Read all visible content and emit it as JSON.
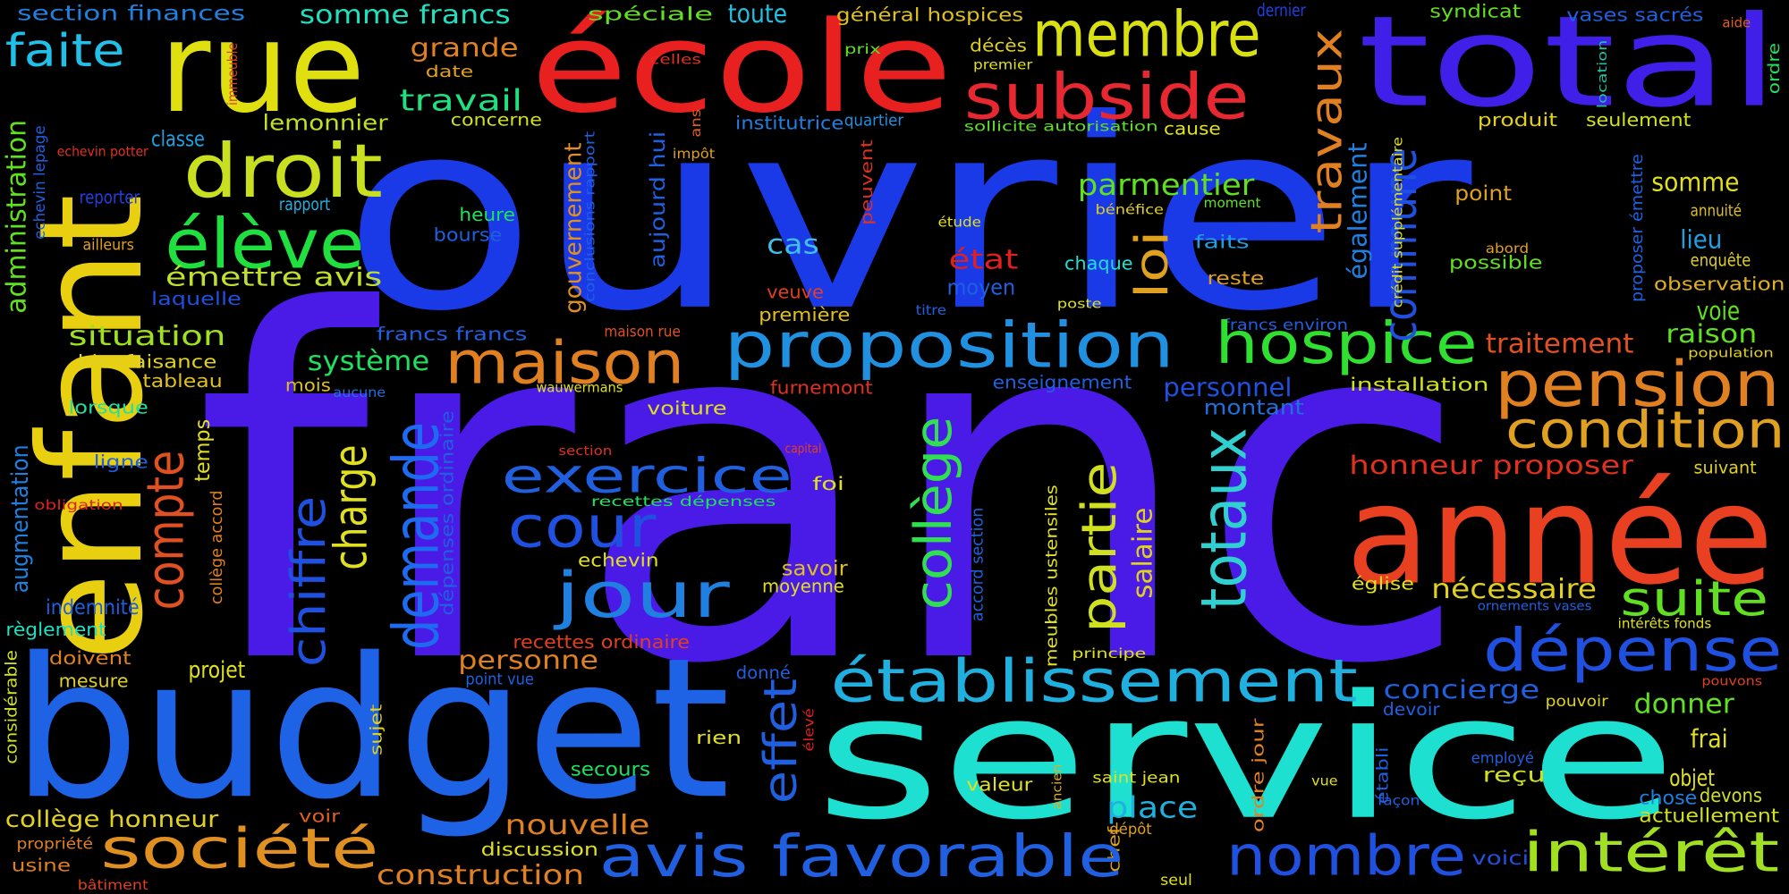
{
  "words": [
    "franc",
    "ouvrier",
    "budget",
    "service",
    "année",
    "enfant",
    "rue",
    "école",
    "total",
    "membre",
    "subside",
    "droit",
    "élève",
    "émettre avis",
    "faite",
    "section finances",
    "somme francs",
    "grande",
    "date",
    "travail",
    "lemonnier",
    "classe",
    "immeuble",
    "echevin potter",
    "administration",
    "echevin lepage",
    "reporter",
    "rapport",
    "ailleurs",
    "laquelle",
    "situation",
    "bienfaisance",
    "tableau",
    "lorsque",
    "ligne",
    "obligation",
    "augmentation",
    "compte",
    "temps",
    "collège accord",
    "indemnité",
    "règlement",
    "considérable",
    "doivent",
    "mesure",
    "projet",
    "chiffre",
    "charge",
    "demande",
    "système",
    "mois",
    "aucune",
    "francs francs",
    "maison",
    "heure",
    "bourse",
    "concerne",
    "gouvernement",
    "conclusions rapport",
    "aujourd hui",
    "celles",
    "ans",
    "impôt",
    "spéciale",
    "toute",
    "prix",
    "général hospices",
    "premier",
    "décès",
    "institutrice",
    "quartier",
    "sollicite autorisation",
    "cause",
    "dernier",
    "syndicat",
    "vases sacrés",
    "aide",
    "ordre",
    "location",
    "produit",
    "seulement",
    "travaux",
    "peuvent",
    "bénéfice",
    "moment",
    "étude",
    "parmentier",
    "cas",
    "état",
    "chaque",
    "moyen",
    "loi",
    "faits",
    "reste",
    "veuve",
    "première",
    "titre",
    "poste",
    "francs environ",
    "proposition",
    "hospice",
    "également",
    "commune",
    "crédit supplémentaire",
    "point",
    "proposer émettre",
    "somme",
    "annuité",
    "lieu",
    "enquête",
    "abord",
    "possible",
    "observation",
    "voie",
    "raison",
    "population",
    "traitement",
    "pension",
    "condition",
    "installation",
    "enseignement",
    "personnel",
    "montant",
    "wauwermans",
    "furnemont",
    "voiture",
    "dépenses ordinaire",
    "maison rue",
    "section",
    "capital",
    "exercice",
    "foi",
    "recettes dépenses",
    "cour",
    "collège",
    "meubles ustensiles",
    "accord section",
    "partie",
    "salaire",
    "totaux",
    "honneur proposer",
    "suivant",
    "echevin",
    "savoir",
    "moyenne",
    "jour",
    "église",
    "nécessaire",
    "suite",
    "ornements vases",
    "intérêts fonds",
    "recettes ordinaire",
    "personne",
    "point vue",
    "donné",
    "établissement",
    "dépense",
    "principe",
    "effet",
    "concierge",
    "devoir",
    "donner",
    "pouvons",
    "pouvoir",
    "frai",
    "rien",
    "élevé",
    "sujet",
    "secours",
    "chef",
    "ordre jour",
    "établi",
    "employé",
    "saint jean",
    "valeur",
    "ancien",
    "reçu",
    "objet",
    "chose",
    "devons",
    "façon",
    "vue",
    "place",
    "dépôt",
    "actuellement",
    "nouvelle",
    "discussion",
    "société",
    "collège honneur",
    "propriété",
    "usine",
    "bâtiment",
    "voir",
    "construction",
    "avis favorable",
    "nombre",
    "voici",
    "seul",
    "intérêt"
  ]
}
